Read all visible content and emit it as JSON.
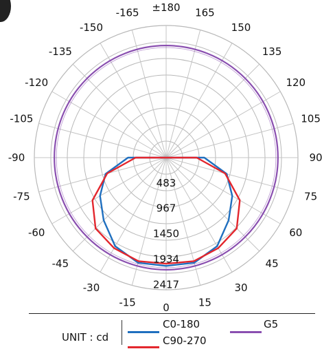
{
  "chart_data": {
    "type": "polar",
    "angle_labels": [
      "±180",
      "165",
      "150",
      "135",
      "120",
      "105",
      "90",
      "75",
      "60",
      "45",
      "30",
      "15",
      "0",
      "-15",
      "-30",
      "-45",
      "-60",
      "-75",
      "-90",
      "-105",
      "-120",
      "-135",
      "-150",
      "-165"
    ],
    "angle_values": [
      180,
      165,
      150,
      135,
      120,
      105,
      90,
      75,
      60,
      45,
      30,
      15,
      0,
      -15,
      -30,
      -45,
      -60,
      -75,
      -90,
      -105,
      -120,
      -135,
      -150,
      -165
    ],
    "radial_ticks": [
      483,
      967,
      1450,
      1934,
      2417
    ],
    "rmax": 2417,
    "grid": true,
    "unit_label": "UNIT : cd",
    "series": [
      {
        "name": "C0-180",
        "color": "#1f6fbf",
        "angles": [
          0,
          15,
          30,
          45,
          60,
          75,
          90,
          105,
          120,
          135,
          150,
          165,
          180
        ],
        "values": [
          1980,
          1990,
          1870,
          1620,
          1400,
          1150,
          700,
          0,
          0,
          0,
          0,
          0,
          0
        ]
      },
      {
        "name": "C90-270",
        "color": "#e3262d",
        "angles": [
          0,
          15,
          30,
          45,
          60,
          75,
          90,
          105,
          120,
          135,
          150,
          165,
          180
        ],
        "values": [
          1940,
          1960,
          1910,
          1830,
          1560,
          1120,
          560,
          0,
          0,
          0,
          0,
          0,
          0
        ]
      },
      {
        "name": "G5",
        "color": "#8a4fb0",
        "constant": 2050
      }
    ]
  }
}
